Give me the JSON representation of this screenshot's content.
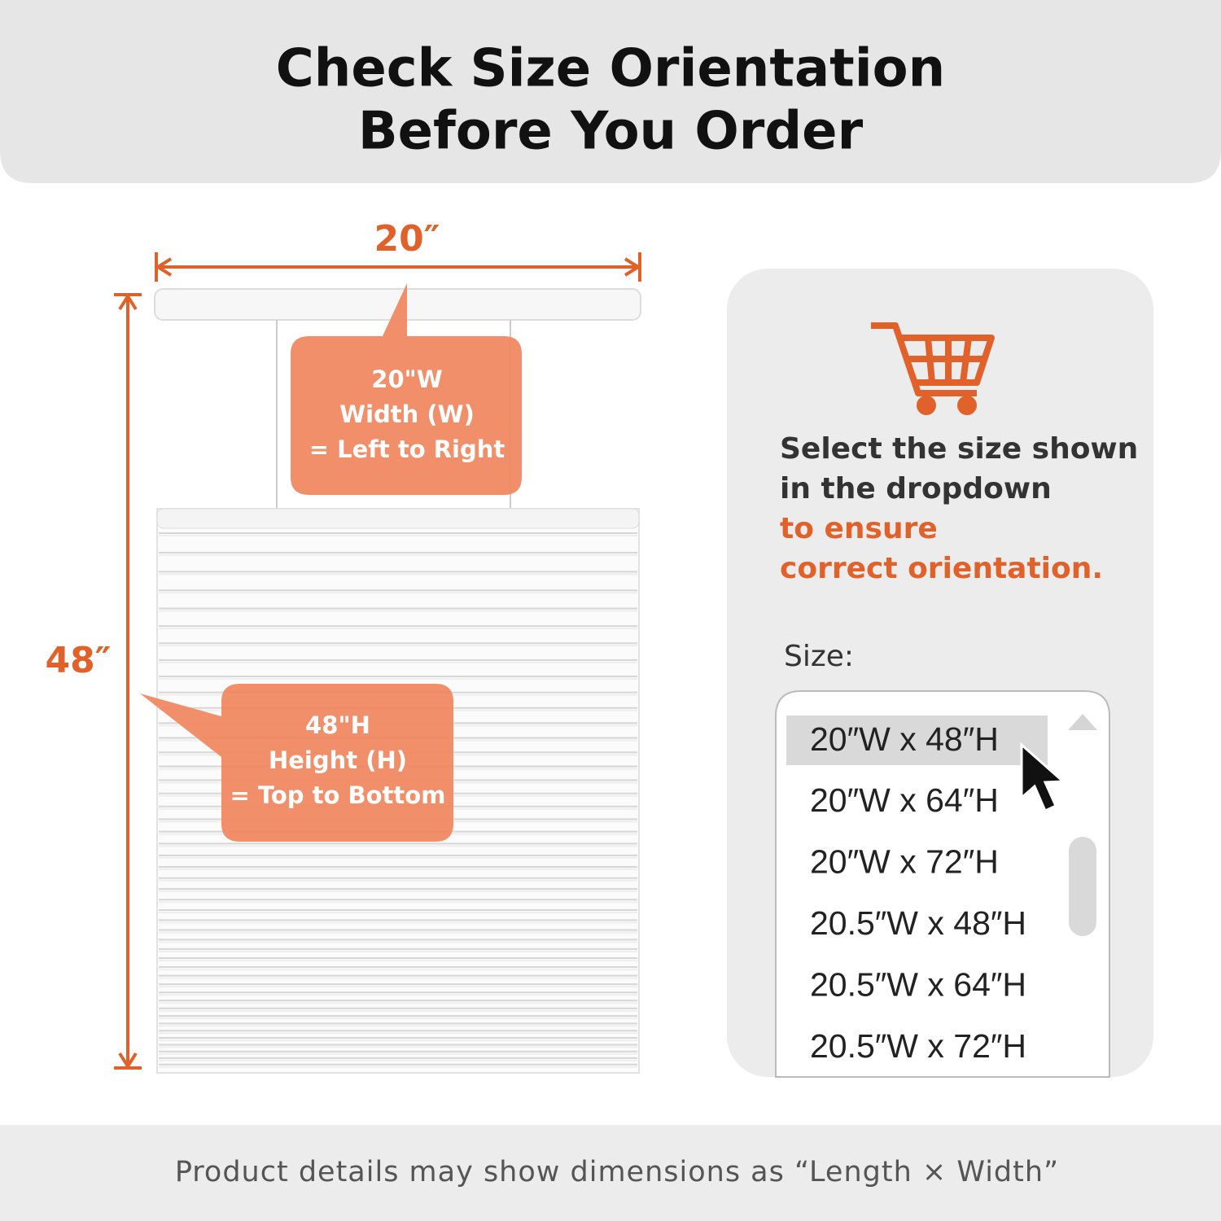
{
  "header": {
    "title": [
      "Check Size Orientation",
      "Before You Order"
    ]
  },
  "dimensions": {
    "width": "20″",
    "height": "48″"
  },
  "callouts": {
    "width": [
      "20\"W",
      "Width (W)",
      "= Left to Right"
    ],
    "height": [
      "48\"H",
      "Height (H)",
      "= Top to Bottom"
    ]
  },
  "panel": {
    "instruction": [
      "Select the size shown",
      "in the dropdown"
    ],
    "emphasis": [
      "to ensure",
      "correct orientation."
    ],
    "size_label": "Size:",
    "options": [
      "20″W x 48″H",
      "20″W x 64″H",
      "20″W x 72″H",
      "20.5″W x 48″H",
      "20.5″W x 64″H",
      "20.5″W x 72″H"
    ]
  },
  "footer": "Product details may show dimensions as “Length × Width”"
}
